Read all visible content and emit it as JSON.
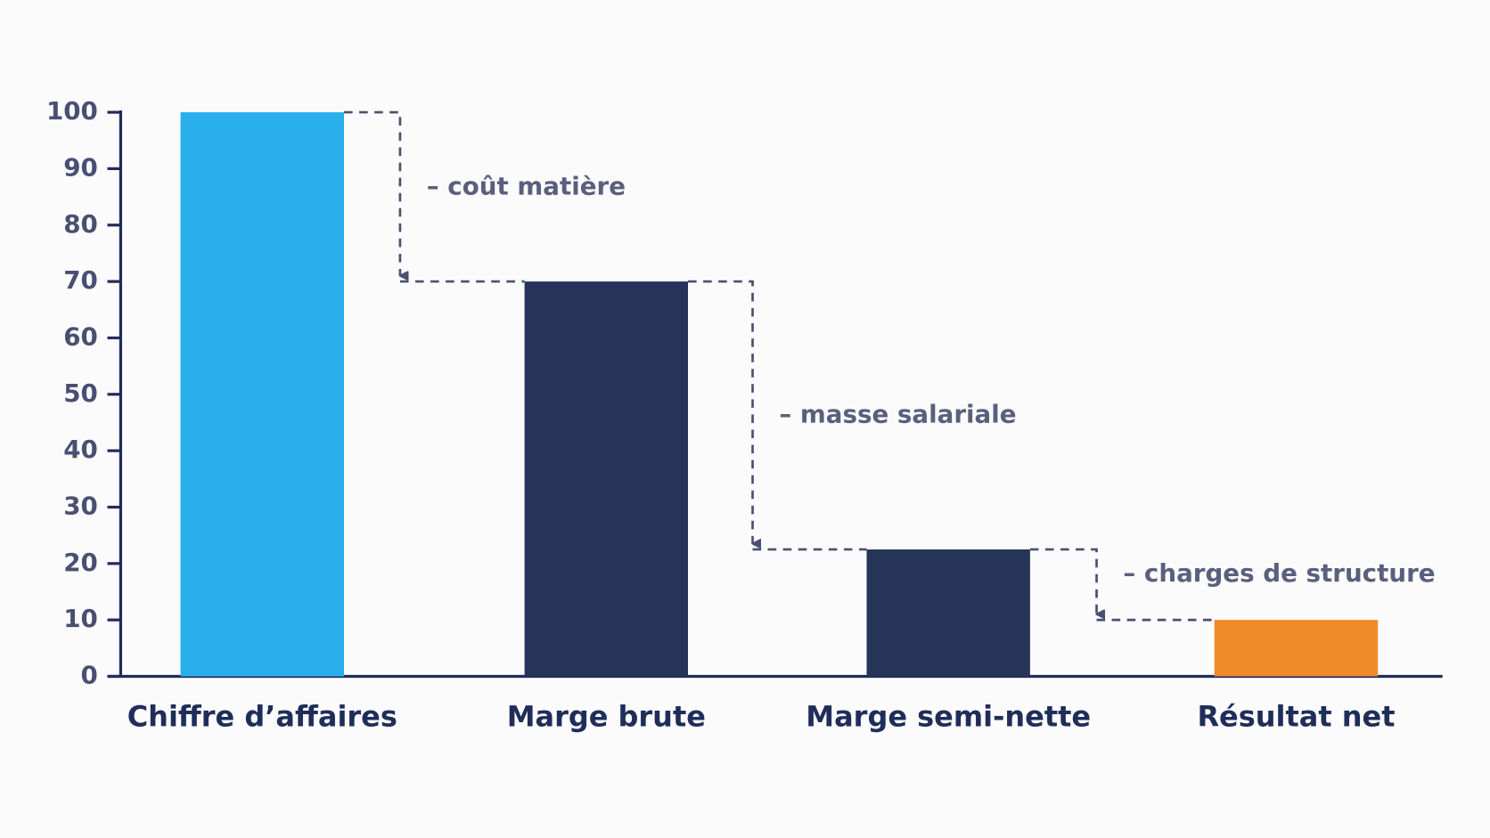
{
  "chart_data": {
    "type": "bar",
    "categories": [
      "Chiffre d’affaires",
      "Marge brute",
      "Marge semi-nette",
      "Résultat net"
    ],
    "values": [
      100,
      70,
      22.5,
      10
    ],
    "colors": [
      "#29b0ec",
      "#26345a",
      "#26345a",
      "#f0892a"
    ],
    "ylim": [
      0,
      100
    ],
    "yticks": [
      0,
      10,
      20,
      30,
      40,
      50,
      60,
      70,
      80,
      90,
      100
    ],
    "grid": false,
    "annotations": [
      "– coût matière",
      "– masse salariale",
      "– charges de structure"
    ]
  }
}
